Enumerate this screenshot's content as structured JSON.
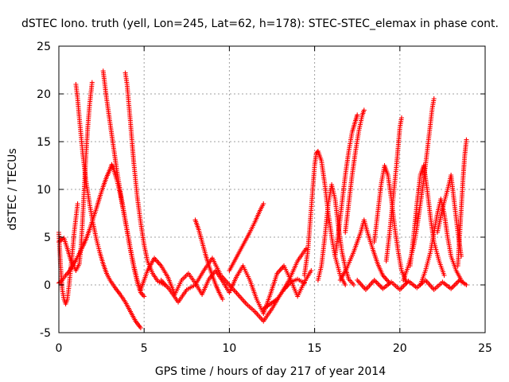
{
  "chart_data": {
    "type": "scatter",
    "title": "dSTEC Iono. truth (yell, Lon=245, Lat=62, h=178): STEC-STEC_elemax in phase cont.",
    "xlabel": "GPS time / hours of day 217 of year 2014",
    "ylabel": "dSTEC  / TECUs",
    "xlim": [
      0,
      25
    ],
    "ylim": [
      -5,
      25
    ],
    "xticks": [
      0,
      5,
      10,
      15,
      20,
      25
    ],
    "yticks": [
      -5,
      0,
      5,
      10,
      15,
      20,
      25
    ],
    "grid": true,
    "marker": "plus",
    "color": "#ff0000",
    "series": [
      {
        "points": [
          [
            0.0,
            0.2
          ],
          [
            0.2,
            0.5
          ],
          [
            0.4,
            1.0
          ],
          [
            0.6,
            1.4
          ],
          [
            0.8,
            2.0
          ],
          [
            1.0,
            2.6
          ],
          [
            1.2,
            3.3
          ],
          [
            1.4,
            4.0
          ],
          [
            1.6,
            4.8
          ],
          [
            1.8,
            5.8
          ],
          [
            2.0,
            6.9
          ],
          [
            2.2,
            8.0
          ],
          [
            2.4,
            9.2
          ],
          [
            2.6,
            10.3
          ],
          [
            2.8,
            11.3
          ],
          [
            3.0,
            12.1
          ],
          [
            3.1,
            12.6
          ],
          [
            3.2,
            12.2
          ],
          [
            3.4,
            11.0
          ],
          [
            3.6,
            9.5
          ],
          [
            3.8,
            7.6
          ],
          [
            4.0,
            5.6
          ],
          [
            4.2,
            3.6
          ],
          [
            4.4,
            1.8
          ],
          [
            4.6,
            0.3
          ],
          [
            4.8,
            -0.8
          ]
        ]
      },
      {
        "points": [
          [
            0.0,
            4.5
          ],
          [
            0.3,
            4.9
          ],
          [
            0.5,
            3.8
          ],
          [
            0.7,
            2.6
          ],
          [
            1.0,
            1.5
          ],
          [
            1.2,
            2.2
          ],
          [
            1.3,
            4.0
          ],
          [
            1.4,
            7.0
          ],
          [
            1.5,
            10.5
          ],
          [
            1.6,
            13.8
          ],
          [
            1.7,
            16.6
          ],
          [
            1.8,
            18.8
          ],
          [
            1.9,
            20.4
          ],
          [
            1.95,
            21.2
          ]
        ]
      },
      {
        "points": [
          [
            1.0,
            21.0
          ],
          [
            1.1,
            19.5
          ],
          [
            1.2,
            17.5
          ],
          [
            1.4,
            13.8
          ],
          [
            1.6,
            10.8
          ],
          [
            1.8,
            8.5
          ],
          [
            2.0,
            6.5
          ],
          [
            2.2,
            4.8
          ],
          [
            2.4,
            3.4
          ],
          [
            2.6,
            2.2
          ],
          [
            2.8,
            1.2
          ],
          [
            3.0,
            0.5
          ],
          [
            3.3,
            -0.3
          ],
          [
            3.6,
            -1.0
          ],
          [
            3.9,
            -1.8
          ],
          [
            4.2,
            -2.8
          ],
          [
            4.5,
            -3.8
          ],
          [
            4.8,
            -4.5
          ]
        ]
      },
      {
        "points": [
          [
            2.6,
            22.4
          ],
          [
            2.8,
            19.5
          ],
          [
            3.0,
            17.0
          ],
          [
            3.2,
            14.5
          ],
          [
            3.4,
            12.0
          ],
          [
            3.6,
            9.8
          ],
          [
            3.8,
            7.8
          ],
          [
            4.0,
            5.8
          ],
          [
            4.2,
            3.8
          ],
          [
            4.4,
            2.0
          ],
          [
            4.6,
            0.5
          ],
          [
            4.8,
            -0.8
          ],
          [
            5.0,
            -1.2
          ]
        ]
      },
      {
        "points": [
          [
            3.9,
            22.2
          ],
          [
            4.0,
            21.0
          ],
          [
            4.1,
            19.0
          ],
          [
            4.2,
            17.0
          ],
          [
            4.3,
            14.8
          ],
          [
            4.4,
            12.7
          ],
          [
            4.6,
            9.2
          ],
          [
            4.8,
            6.5
          ],
          [
            5.0,
            4.2
          ],
          [
            5.2,
            2.5
          ],
          [
            5.5,
            1.2
          ],
          [
            5.8,
            0.4
          ],
          [
            6.2,
            0.0
          ]
        ]
      },
      {
        "points": [
          [
            0.0,
            5.5
          ],
          [
            0.1,
            2.0
          ],
          [
            0.2,
            -0.5
          ],
          [
            0.3,
            -1.5
          ],
          [
            0.4,
            -2.0
          ],
          [
            0.5,
            -1.5
          ],
          [
            0.6,
            0.0
          ],
          [
            0.7,
            1.8
          ],
          [
            0.8,
            3.5
          ],
          [
            0.9,
            5.5
          ],
          [
            1.0,
            7.0
          ],
          [
            1.1,
            8.5
          ]
        ]
      },
      {
        "points": [
          [
            4.8,
            -0.5
          ],
          [
            5.2,
            1.5
          ],
          [
            5.6,
            2.8
          ],
          [
            6.0,
            2.0
          ],
          [
            6.4,
            0.8
          ],
          [
            6.8,
            -1.0
          ],
          [
            7.2,
            0.5
          ],
          [
            7.6,
            1.2
          ],
          [
            8.0,
            0.2
          ],
          [
            8.4,
            -1.0
          ],
          [
            8.8,
            0.6
          ],
          [
            9.2,
            1.5
          ],
          [
            9.6,
            0.4
          ],
          [
            10.0,
            -0.8
          ],
          [
            10.4,
            0.8
          ],
          [
            10.8,
            2.0
          ],
          [
            11.2,
            0.5
          ],
          [
            11.6,
            -1.5
          ],
          [
            12.0,
            -3.0
          ],
          [
            12.4,
            -1.0
          ],
          [
            12.8,
            1.2
          ],
          [
            13.2,
            2.0
          ],
          [
            13.6,
            0.5
          ],
          [
            14.0,
            -1.2
          ],
          [
            14.4,
            0.3
          ],
          [
            14.8,
            1.5
          ]
        ]
      },
      {
        "points": [
          [
            8.0,
            6.8
          ],
          [
            8.2,
            5.8
          ],
          [
            8.4,
            4.5
          ],
          [
            8.6,
            3.2
          ],
          [
            8.8,
            2.0
          ],
          [
            9.0,
            1.0
          ],
          [
            9.2,
            0.0
          ],
          [
            9.4,
            -0.8
          ],
          [
            9.6,
            -1.5
          ]
        ]
      },
      {
        "points": [
          [
            10.0,
            1.5
          ],
          [
            10.3,
            2.5
          ],
          [
            10.6,
            3.5
          ],
          [
            10.9,
            4.5
          ],
          [
            11.2,
            5.5
          ],
          [
            11.5,
            6.6
          ],
          [
            11.8,
            7.8
          ],
          [
            12.0,
            8.5
          ]
        ]
      },
      {
        "points": [
          [
            12.0,
            -2.5
          ],
          [
            12.4,
            -2.0
          ],
          [
            12.8,
            -1.5
          ],
          [
            13.2,
            -0.5
          ],
          [
            13.6,
            0.3
          ],
          [
            14.0,
            0.6
          ],
          [
            14.4,
            0.2
          ]
        ]
      },
      {
        "points": [
          [
            14.4,
            1.0
          ],
          [
            14.6,
            3.5
          ],
          [
            14.8,
            8.0
          ],
          [
            15.0,
            12.5
          ],
          [
            15.1,
            13.8
          ],
          [
            15.2,
            14.0
          ],
          [
            15.4,
            13.0
          ],
          [
            15.6,
            10.5
          ],
          [
            15.8,
            7.5
          ],
          [
            16.0,
            5.0
          ],
          [
            16.2,
            3.0
          ],
          [
            16.5,
            1.0
          ],
          [
            16.8,
            0.0
          ]
        ]
      },
      {
        "points": [
          [
            15.2,
            0.5
          ],
          [
            15.4,
            2.0
          ],
          [
            15.6,
            5.0
          ],
          [
            15.8,
            8.5
          ],
          [
            16.0,
            10.5
          ],
          [
            16.2,
            9.0
          ],
          [
            16.4,
            6.0
          ],
          [
            16.6,
            3.5
          ],
          [
            16.8,
            1.8
          ],
          [
            17.0,
            0.6
          ],
          [
            17.3,
            0.0
          ]
        ]
      },
      {
        "points": [
          [
            16.2,
            3.0
          ],
          [
            16.4,
            5.5
          ],
          [
            16.6,
            8.5
          ],
          [
            16.8,
            11.5
          ],
          [
            17.0,
            14.0
          ],
          [
            17.2,
            16.0
          ],
          [
            17.4,
            17.2
          ],
          [
            17.5,
            17.8
          ]
        ]
      },
      {
        "points": [
          [
            16.8,
            5.5
          ],
          [
            17.0,
            8.5
          ],
          [
            17.2,
            11.5
          ],
          [
            17.4,
            14.0
          ],
          [
            17.6,
            16.2
          ],
          [
            17.8,
            17.8
          ],
          [
            17.9,
            18.3
          ]
        ]
      },
      {
        "points": [
          [
            16.5,
            0.5
          ],
          [
            16.9,
            1.8
          ],
          [
            17.3,
            3.5
          ],
          [
            17.7,
            5.5
          ],
          [
            17.9,
            6.8
          ],
          [
            18.1,
            5.5
          ],
          [
            18.4,
            3.8
          ],
          [
            18.7,
            2.2
          ],
          [
            19.0,
            1.0
          ],
          [
            19.4,
            0.2
          ]
        ]
      },
      {
        "points": [
          [
            18.5,
            4.5
          ],
          [
            18.7,
            7.5
          ],
          [
            18.9,
            10.5
          ],
          [
            19.1,
            12.5
          ],
          [
            19.3,
            11.5
          ],
          [
            19.5,
            9.0
          ],
          [
            19.7,
            6.0
          ],
          [
            19.9,
            3.5
          ],
          [
            20.1,
            1.5
          ],
          [
            20.4,
            0.2
          ]
        ]
      },
      {
        "points": [
          [
            19.2,
            2.5
          ],
          [
            19.4,
            5.5
          ],
          [
            19.6,
            9.0
          ],
          [
            19.8,
            12.5
          ],
          [
            19.9,
            14.5
          ],
          [
            20.0,
            16.5
          ],
          [
            20.1,
            17.5
          ]
        ]
      },
      {
        "points": [
          [
            20.2,
            0.5
          ],
          [
            20.5,
            2.0
          ],
          [
            20.8,
            4.0
          ],
          [
            21.0,
            6.0
          ],
          [
            21.2,
            8.5
          ],
          [
            21.4,
            11.0
          ],
          [
            21.6,
            14.0
          ],
          [
            21.8,
            17.0
          ],
          [
            21.9,
            18.5
          ],
          [
            22.0,
            19.5
          ]
        ]
      },
      {
        "points": [
          [
            20.6,
            2.0
          ],
          [
            20.8,
            5.0
          ],
          [
            21.0,
            8.5
          ],
          [
            21.2,
            11.5
          ],
          [
            21.4,
            12.5
          ],
          [
            21.6,
            10.0
          ],
          [
            21.8,
            7.0
          ],
          [
            22.0,
            4.5
          ],
          [
            22.3,
            2.5
          ],
          [
            22.6,
            1.0
          ]
        ]
      },
      {
        "points": [
          [
            21.2,
            0.0
          ],
          [
            21.5,
            1.5
          ],
          [
            21.8,
            3.5
          ],
          [
            22.0,
            5.5
          ],
          [
            22.2,
            7.5
          ],
          [
            22.4,
            9.0
          ],
          [
            22.6,
            7.5
          ],
          [
            22.8,
            5.0
          ],
          [
            23.0,
            3.0
          ],
          [
            23.3,
            1.5
          ],
          [
            23.6,
            0.5
          ]
        ]
      },
      {
        "points": [
          [
            22.2,
            5.5
          ],
          [
            22.5,
            8.0
          ],
          [
            22.8,
            10.0
          ],
          [
            23.0,
            11.5
          ],
          [
            23.2,
            8.5
          ],
          [
            23.4,
            5.5
          ],
          [
            23.6,
            3.0
          ]
        ]
      },
      {
        "points": [
          [
            23.4,
            2.0
          ],
          [
            23.5,
            5.0
          ],
          [
            23.6,
            8.0
          ],
          [
            23.7,
            11.0
          ],
          [
            23.8,
            13.5
          ],
          [
            23.9,
            15.2
          ]
        ]
      },
      {
        "points": [
          [
            17.5,
            0.5
          ],
          [
            18.0,
            -0.5
          ],
          [
            18.5,
            0.5
          ],
          [
            19.0,
            -0.4
          ],
          [
            19.5,
            0.3
          ],
          [
            20.0,
            -0.5
          ],
          [
            20.5,
            0.4
          ],
          [
            21.0,
            -0.3
          ],
          [
            21.5,
            0.5
          ],
          [
            22.0,
            -0.5
          ],
          [
            22.5,
            0.3
          ],
          [
            23.0,
            -0.4
          ],
          [
            23.5,
            0.5
          ],
          [
            23.9,
            0.0
          ]
        ]
      },
      {
        "points": [
          [
            6.0,
            0.5
          ],
          [
            6.5,
            -0.5
          ],
          [
            7.0,
            -1.8
          ],
          [
            7.5,
            -0.5
          ],
          [
            8.0,
            0.0
          ],
          [
            8.5,
            1.5
          ],
          [
            9.0,
            2.8
          ],
          [
            9.5,
            1.0
          ],
          [
            10.0,
            0.0
          ],
          [
            10.5,
            -1.0
          ],
          [
            11.0,
            -2.0
          ],
          [
            11.5,
            -2.8
          ],
          [
            12.0,
            -3.8
          ],
          [
            12.5,
            -2.5
          ],
          [
            13.0,
            -1.0
          ],
          [
            13.5,
            0.5
          ],
          [
            14.0,
            2.5
          ],
          [
            14.5,
            3.8
          ]
        ]
      }
    ]
  }
}
